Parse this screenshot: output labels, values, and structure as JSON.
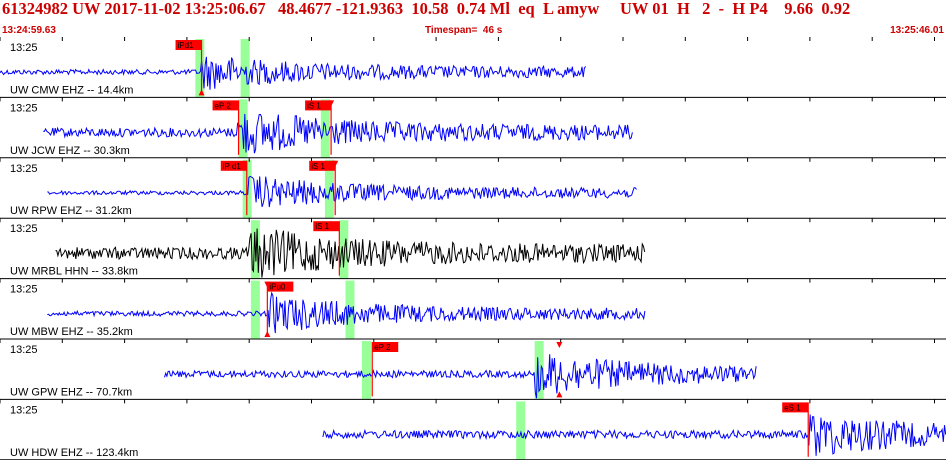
{
  "header": {
    "title": "61324982 UW 2017-11-02 13:25:06.67   48.4677 -121.9363  10.58  0.74 Ml  eq  L amyw     UW 01  H   2  -  H P4    9.66  0.92",
    "start_time": "13:24:59.63",
    "timespan": "Timespan=  46 s",
    "end_time": "13:25:46.01"
  },
  "colors": {
    "header_text": "#cc0000",
    "trace_default": "#0000ff",
    "trace_hhn": "#000000",
    "pick_flag": "#ff0000",
    "window": "#99ff99"
  },
  "channels": [
    {
      "time_label": "13:25",
      "station_label": "UW CMW EHZ -- 14.4km",
      "color": "#0000ff",
      "trace": {
        "start_s": 0.0,
        "end_s": 28.5,
        "onset_s": 9.8,
        "noise": 2.5,
        "amp": 14
      },
      "windows": [
        9.5,
        11.7
      ],
      "picks": [
        {
          "label": "iPd1",
          "t": 9.8,
          "side": "left"
        }
      ],
      "markers": [
        {
          "t": 9.8,
          "dir": "up"
        }
      ]
    },
    {
      "time_label": "13:25",
      "station_label": "UW JCW EHZ -- 30.3km",
      "color": "#0000ff",
      "trace": {
        "start_s": 2.1,
        "end_s": 30.8,
        "onset_s": 11.5,
        "noise": 4.5,
        "amp": 18
      },
      "windows": [
        11.6,
        15.6
      ],
      "picks": [
        {
          "label": "eP 2",
          "t": 11.6,
          "side": "left"
        },
        {
          "label": "iS 1",
          "t": 16.1,
          "side": "left"
        }
      ],
      "markers": [
        {
          "t": 16.1,
          "dir": "down"
        }
      ]
    },
    {
      "time_label": "13:25",
      "station_label": "UW RPW EHZ -- 31.2km",
      "color": "#0000ff",
      "trace": {
        "start_s": 2.3,
        "end_s": 31.0,
        "onset_s": 12.0,
        "noise": 2.0,
        "amp": 14
      },
      "windows": [
        11.8,
        15.8
      ],
      "picks": [
        {
          "label": "iP d1",
          "t": 12.0,
          "side": "left"
        },
        {
          "label": "iS 1",
          "t": 16.3,
          "side": "left"
        }
      ],
      "markers": [
        {
          "t": 16.3,
          "dir": "down"
        }
      ]
    },
    {
      "time_label": "13:25",
      "station_label": "UW MRBL HHN -- 33.8km",
      "color": "#000000",
      "trace": {
        "start_s": 2.7,
        "end_s": 31.4,
        "onset_s": 12.1,
        "noise": 6.0,
        "amp": 20
      },
      "windows": [
        12.2,
        16.5
      ],
      "picks": [
        {
          "label": "iS 1",
          "t": 16.5,
          "side": "left"
        }
      ],
      "markers": []
    },
    {
      "time_label": "13:25",
      "station_label": "UW MBW EHZ -- 35.2km",
      "color": "#0000ff",
      "trace": {
        "start_s": 2.3,
        "end_s": 31.4,
        "onset_s": 13.0,
        "noise": 2.5,
        "amp": 16
      },
      "windows": [
        12.2,
        16.8
      ],
      "picks": [
        {
          "label": "iPu0",
          "t": 13.0,
          "side": "right"
        }
      ],
      "markers": [
        {
          "t": 13.0,
          "dir": "down"
        },
        {
          "t": 13.0,
          "dir": "up"
        }
      ]
    },
    {
      "time_label": "13:25",
      "station_label": "UW GPW EHZ -- 70.7km",
      "color": "#0000ff",
      "trace": {
        "start_s": 8.0,
        "end_s": 36.8,
        "onset_s": 26.0,
        "noise": 3.5,
        "amp": 18
      },
      "windows": [
        17.6,
        26.0
      ],
      "picks": [
        {
          "label": "eP 2",
          "t": 18.1,
          "side": "right"
        }
      ],
      "markers": [
        {
          "t": 27.2,
          "dir": "down"
        },
        {
          "t": 27.2,
          "dir": "up"
        }
      ]
    },
    {
      "time_label": "13:25",
      "station_label": "UW HDW EHZ -- 123.4km",
      "color": "#0000ff",
      "trace": {
        "start_s": 15.7,
        "end_s": 46.0,
        "onset_s": 39.3,
        "noise": 4.0,
        "amp": 18
      },
      "windows": [
        25.1
      ],
      "picks": [
        {
          "label": "eS 1",
          "t": 39.3,
          "side": "left"
        }
      ],
      "markers": []
    }
  ]
}
